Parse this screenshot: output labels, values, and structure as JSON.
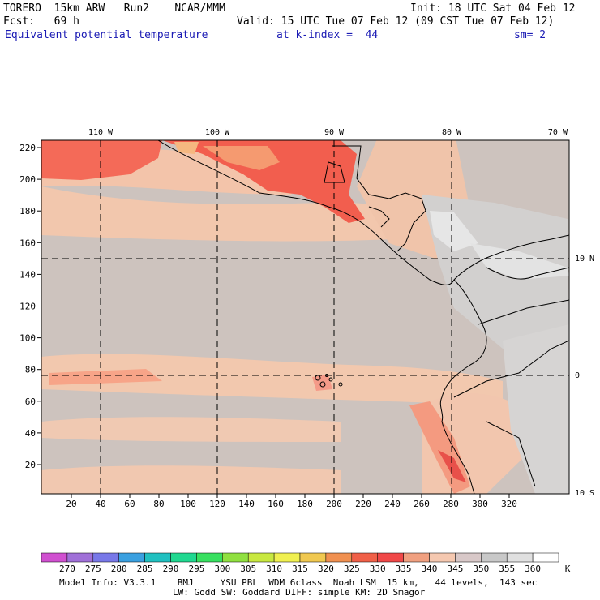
{
  "header": {
    "model": "TORERO  15km ARW   Run2    NCAR/MMM",
    "init": "Init: 18 UTC Sat 04 Feb 12",
    "fcst": "Fcst:   69 h",
    "valid": "Valid: 15 UTC Tue 07 Feb 12 (09 CST Tue 07 Feb 12)",
    "field": "Equivalent potential temperature",
    "level": "at k-index =  44",
    "smooth": "sm= 2"
  },
  "top_lon_labels": [
    "110 W",
    "100 W",
    "90 W",
    "80 W",
    "70 W"
  ],
  "right_lat_labels": [
    "10 N",
    "0",
    "10 S"
  ],
  "y_ticks": [
    "220",
    "200",
    "180",
    "160",
    "140",
    "120",
    "100",
    "80",
    "60",
    "40",
    "20"
  ],
  "x_ticks": [
    "20",
    "40",
    "60",
    "80",
    "100",
    "120",
    "140",
    "160",
    "180",
    "200",
    "220",
    "240",
    "260",
    "280",
    "300",
    "320"
  ],
  "colorbar": {
    "labels": [
      "270",
      "275",
      "280",
      "285",
      "290",
      "295",
      "300",
      "305",
      "310",
      "315",
      "320",
      "325",
      "330",
      "335",
      "340",
      "345",
      "350",
      "355",
      "360"
    ],
    "unit": "K",
    "colors": [
      "#d050d0",
      "#a070d8",
      "#7878e8",
      "#3aa0e0",
      "#20c0c0",
      "#20d890",
      "#38e060",
      "#90e040",
      "#c8e840",
      "#f0f050",
      "#f0c850",
      "#f09050",
      "#f06048",
      "#f04848",
      "#f0a080",
      "#f5c8b0",
      "#d8c8c8",
      "#c8c8c8",
      "#e0e0e0",
      "#ffffff"
    ]
  },
  "footer": {
    "line1": "Model Info: V3.3.1    BMJ     YSU PBL  WDM 6class  Noah LSM  15 km,   44 levels,  143 sec",
    "line2": "LW: Godd SW: Goddard DIFF: simple KM: 2D Smagor"
  }
}
